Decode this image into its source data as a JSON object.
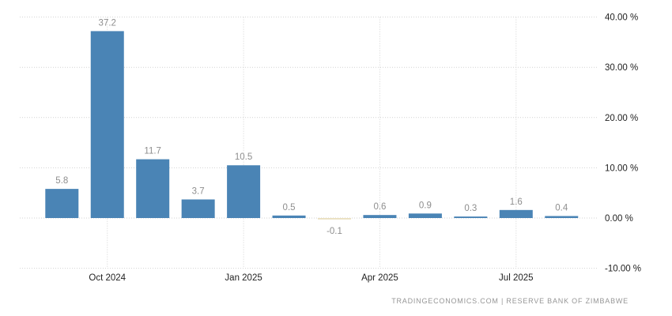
{
  "chart_data": {
    "type": "bar",
    "title": "",
    "xlabel": "",
    "ylabel": "",
    "values": [
      5.8,
      37.2,
      11.7,
      3.7,
      10.5,
      0.5,
      -0.1,
      0.6,
      0.9,
      0.3,
      1.6,
      0.4
    ],
    "bar_labels": [
      "5.8",
      "37.2",
      "11.7",
      "3.7",
      "10.5",
      "0.5",
      "-0.1",
      "0.6",
      "0.9",
      "0.3",
      "1.6",
      "0.4"
    ],
    "x_ticks": [
      {
        "index": 1,
        "label": "Oct 2024"
      },
      {
        "index": 4,
        "label": "Jan 2025"
      },
      {
        "index": 7,
        "label": "Apr 2025"
      },
      {
        "index": 10,
        "label": "Jul 2025"
      }
    ],
    "y_ticks": [
      {
        "value": 40,
        "label": "40.00 %"
      },
      {
        "value": 30,
        "label": "30.00 %"
      },
      {
        "value": 20,
        "label": "20.00 %"
      },
      {
        "value": 10,
        "label": "10.00 %"
      },
      {
        "value": 0,
        "label": "0.00 %"
      },
      {
        "value": -10,
        "label": "-10.00 %"
      }
    ],
    "ylim": [
      -10,
      40
    ],
    "grid": "dotted",
    "legend_position": "none",
    "y_axis_side": "right",
    "colors": {
      "bar_positive": "#4a84b5",
      "bar_negative": "#eadfbf",
      "grid": "#d2d2d2",
      "bar_label": "#8e8e8e",
      "tick_label": "#222222"
    }
  },
  "footer": {
    "text": "TRADINGECONOMICS.COM | RESERVE BANK OF ZIMBABWE"
  }
}
